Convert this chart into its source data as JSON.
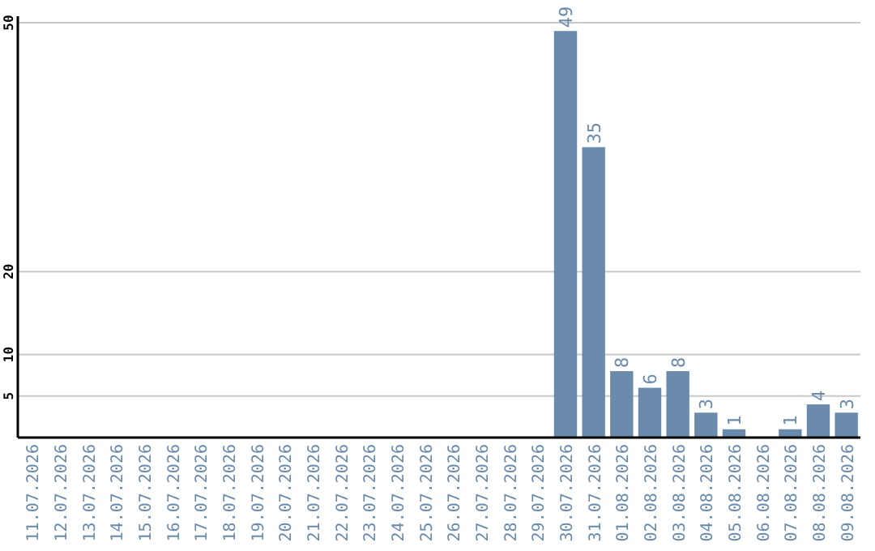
{
  "chart_data": {
    "type": "bar",
    "categories": [
      "11.07.2026",
      "12.07.2026",
      "13.07.2026",
      "14.07.2026",
      "15.07.2026",
      "16.07.2026",
      "17.07.2026",
      "18.07.2026",
      "19.07.2026",
      "20.07.2026",
      "21.07.2026",
      "22.07.2026",
      "23.07.2026",
      "24.07.2026",
      "25.07.2026",
      "26.07.2026",
      "27.07.2026",
      "28.07.2026",
      "29.07.2026",
      "30.07.2026",
      "31.07.2026",
      "01.08.2026",
      "02.08.2026",
      "03.08.2026",
      "04.08.2026",
      "05.08.2026",
      "06.08.2026",
      "07.08.2026",
      "08.08.2026",
      "09.08.2026"
    ],
    "values": [
      0,
      0,
      0,
      0,
      0,
      0,
      0,
      0,
      0,
      0,
      0,
      0,
      0,
      0,
      0,
      0,
      0,
      0,
      0,
      49,
      35,
      8,
      6,
      8,
      3,
      1,
      0,
      1,
      4,
      3
    ],
    "value_labels": [
      null,
      null,
      null,
      null,
      null,
      null,
      null,
      null,
      null,
      null,
      null,
      null,
      null,
      null,
      null,
      null,
      null,
      null,
      null,
      "49",
      "35",
      "8",
      "6",
      "8",
      "3",
      "1",
      null,
      "1",
      "4",
      "3"
    ],
    "color": "#6a8bab",
    "ylim": [
      0,
      50
    ],
    "yticks": [
      5,
      10,
      20,
      50
    ],
    "grid": "y"
  }
}
